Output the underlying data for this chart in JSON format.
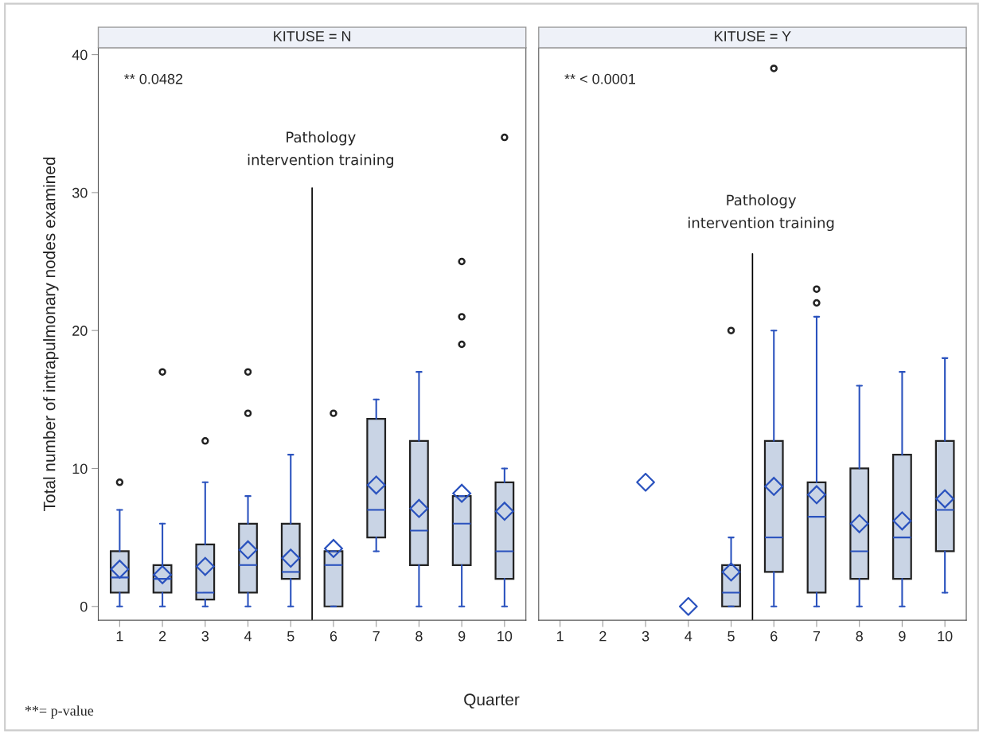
{
  "chart_data": [
    {
      "type": "box",
      "title": "KITUSE = N",
      "xlabel": "Quarter",
      "ylabel": "Total number of intrapulmonary nodes examined",
      "x": [
        1,
        2,
        3,
        4,
        5,
        6,
        7,
        8,
        9,
        10
      ],
      "xlim": [
        0.5,
        10.5
      ],
      "xticks": [
        1,
        2,
        3,
        4,
        5,
        6,
        7,
        8,
        9,
        10
      ],
      "ylim": [
        -1,
        40.5
      ],
      "yticks": [
        0,
        10,
        20,
        30,
        40
      ],
      "grid": false,
      "legend": false,
      "series": [
        {
          "color": "#c9d4e5",
          "boxes": [
            {
              "low": 0,
              "q1": 1,
              "median": 2.1,
              "q3": 4,
              "high": 7,
              "mean": 2.7,
              "outliers": [
                9
              ]
            },
            {
              "low": 0,
              "q1": 1,
              "median": 2,
              "q3": 3,
              "high": 6,
              "mean": 2.3,
              "outliers": [
                17
              ]
            },
            {
              "low": 0,
              "q1": 0.5,
              "median": 1,
              "q3": 4.5,
              "high": 9,
              "mean": 2.9,
              "outliers": [
                12
              ]
            },
            {
              "low": 0,
              "q1": 1,
              "median": 3,
              "q3": 6,
              "high": 8,
              "mean": 4.1,
              "outliers": [
                14,
                17
              ]
            },
            {
              "low": 0,
              "q1": 2,
              "median": 2.5,
              "q3": 6,
              "high": 11,
              "mean": 3.5
            },
            {
              "low": 0,
              "q1": 0,
              "median": 3,
              "q3": 4,
              "high": 4,
              "mean": 4.2,
              "outliers": [
                14
              ]
            },
            {
              "low": 4,
              "q1": 5,
              "median": 7,
              "q3": 13.6,
              "high": 15,
              "mean": 8.8
            },
            {
              "low": 0,
              "q1": 3,
              "median": 5.5,
              "q3": 12,
              "high": 17,
              "mean": 7.1
            },
            {
              "low": 0,
              "q1": 3,
              "median": 6,
              "q3": 8,
              "high": 8,
              "mean": 8.2,
              "outliers": [
                19,
                21,
                25
              ]
            },
            {
              "low": 0,
              "q1": 2,
              "median": 4,
              "q3": 9,
              "high": 10,
              "mean": 6.9,
              "outliers": [
                34
              ]
            }
          ]
        }
      ],
      "ref_lines": [
        {
          "axis": "x",
          "value": 5.5,
          "label": "Pathology\nintervention training",
          "color": "#000000"
        }
      ],
      "annotations": [
        "** 0.0482",
        "**= p-value"
      ]
    },
    {
      "type": "box",
      "title": "KITUSE = Y",
      "xlim": [
        0.5,
        10.5
      ],
      "xticks": [
        1,
        2,
        3,
        4,
        5,
        6,
        7,
        8,
        9,
        10
      ],
      "ylim": [
        -1,
        40.5
      ],
      "yticks": [
        0,
        10,
        20,
        30,
        40
      ],
      "grid": false,
      "legend": false,
      "tick_labels": "x",
      "series": [
        {
          "color": "#c9d4e5",
          "x": [
            5,
            6,
            7,
            8,
            9,
            10
          ],
          "boxes": [
            {
              "low": 0,
              "q1": 0,
              "median": 1,
              "q3": 3,
              "high": 5,
              "mean": 2.5,
              "outliers": [
                20
              ]
            },
            {
              "low": 0,
              "q1": 2.5,
              "median": 5,
              "q3": 12,
              "high": 20,
              "mean": 8.7,
              "outliers": [
                39
              ]
            },
            {
              "low": 0,
              "q1": 1,
              "median": 6.5,
              "q3": 9,
              "high": 21,
              "mean": 8.1,
              "outliers": [
                22,
                23
              ]
            },
            {
              "low": 0,
              "q1": 2,
              "median": 4,
              "q3": 10,
              "high": 16,
              "mean": 6
            },
            {
              "low": 0,
              "q1": 2,
              "median": 5,
              "q3": 11,
              "high": 17,
              "mean": 6.2
            },
            {
              "low": 1,
              "q1": 4,
              "median": 7,
              "q3": 12,
              "high": 18,
              "mean": 7.8
            }
          ]
        },
        {
          "type": "scatter",
          "color": "#2a52be",
          "marker": "diamond",
          "x": [
            3,
            4
          ],
          "values": [
            9,
            0
          ]
        }
      ],
      "ref_lines": [
        {
          "axis": "x",
          "value": 5.5,
          "label": "Pathology\nintervention training",
          "color": "#000000"
        }
      ],
      "annotations": [
        "** < 0.0001"
      ]
    }
  ]
}
